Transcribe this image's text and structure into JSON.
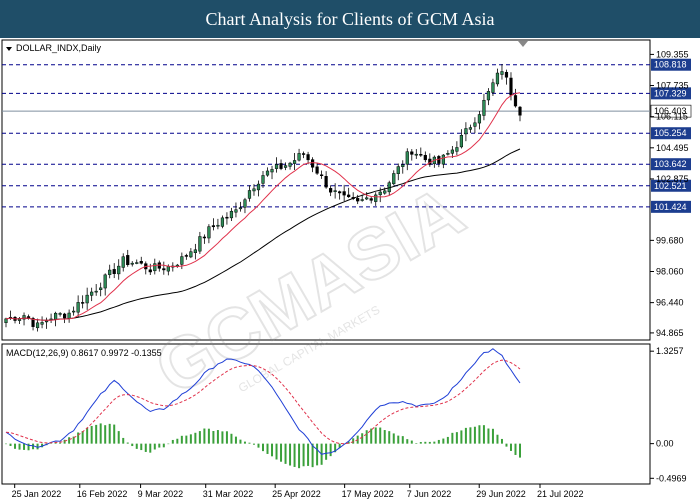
{
  "banner": {
    "title": "Chart Analysis for Clients of GCM Asia"
  },
  "watermark": {
    "text": "GCMASIA",
    "subtext": "GLOBAL CAPITAL MARKETS"
  },
  "colors": {
    "banner_bg": "#1f4e68",
    "bull": "#2e8b57",
    "bear": "#000000",
    "ma_short": "#e0314b",
    "ma_long": "#000000",
    "level_line": "#00008b",
    "macd_line": "#1f3fd6",
    "signal_line": "#e0314b",
    "hist": "#3aa03a",
    "price_tag_bg": "#1c3d8f"
  },
  "chart_data": [
    {
      "type": "candlestick",
      "symbol_label": "DOLLAR_INDX,Daily",
      "ylim": [
        94.6,
        110.0
      ],
      "y_ticks": [
        109.355,
        107.735,
        106.115,
        104.495,
        102.875,
        99.68,
        98.06,
        96.44,
        94.865
      ],
      "levels": [
        108.818,
        107.329,
        105.254,
        103.642,
        102.521,
        101.424
      ],
      "current_price": 106.403,
      "x_labels": [
        "25 Jan 2022",
        "16 Feb 2022",
        "9 Mar 2022",
        "31 Mar 2022",
        "25 Apr 2022",
        "17 May 2022",
        "7 Jun 2022",
        "29 Jun 2022",
        "21 Jul 2022"
      ],
      "anchor_closes": [
        [
          0,
          95.6
        ],
        [
          4,
          95.8
        ],
        [
          7,
          95.2
        ],
        [
          10,
          95.7
        ],
        [
          14,
          95.9
        ],
        [
          17,
          96.6
        ],
        [
          20,
          97.2
        ],
        [
          23,
          97.9
        ],
        [
          26,
          98.6
        ],
        [
          29,
          98.5
        ],
        [
          32,
          98.2
        ],
        [
          36,
          98.3
        ],
        [
          39,
          98.7
        ],
        [
          42,
          99.4
        ],
        [
          45,
          100.2
        ],
        [
          48,
          100.8
        ],
        [
          51,
          101.2
        ],
        [
          54,
          102.3
        ],
        [
          57,
          103.1
        ],
        [
          60,
          103.4
        ],
        [
          63,
          103.7
        ],
        [
          66,
          104.2
        ],
        [
          69,
          103.3
        ],
        [
          72,
          102.3
        ],
        [
          75,
          101.8
        ],
        [
          78,
          101.6
        ],
        [
          81,
          102.0
        ],
        [
          84,
          102.4
        ],
        [
          87,
          103.4
        ],
        [
          90,
          104.4
        ],
        [
          93,
          103.9
        ],
        [
          96,
          103.7
        ],
        [
          99,
          104.4
        ],
        [
          102,
          105.3
        ],
        [
          105,
          106.4
        ],
        [
          108,
          107.8
        ],
        [
          110,
          108.6
        ],
        [
          112,
          107.4
        ],
        [
          114,
          106.4
        ]
      ],
      "candle_count": 115,
      "ma_short_period": 10,
      "ma_long_period": 40
    },
    {
      "type": "macd",
      "label": "MACD(12,26,9) 0.8617 0.9972 -0.1355",
      "ylim": [
        -0.55,
        1.4
      ],
      "y_ticks": [
        1.3257,
        0.0,
        -0.4969
      ],
      "macd_anchors": [
        [
          0,
          0.15
        ],
        [
          3,
          0.05
        ],
        [
          6,
          -0.05
        ],
        [
          9,
          0.0
        ],
        [
          12,
          0.05
        ],
        [
          15,
          0.2
        ],
        [
          18,
          0.45
        ],
        [
          21,
          0.7
        ],
        [
          24,
          0.9
        ],
        [
          26,
          0.8
        ],
        [
          29,
          0.6
        ],
        [
          32,
          0.45
        ],
        [
          35,
          0.5
        ],
        [
          38,
          0.65
        ],
        [
          41,
          0.8
        ],
        [
          44,
          1.0
        ],
        [
          47,
          1.15
        ],
        [
          49,
          1.2
        ],
        [
          52,
          1.18
        ],
        [
          55,
          1.1
        ],
        [
          58,
          0.9
        ],
        [
          61,
          0.6
        ],
        [
          64,
          0.3
        ],
        [
          67,
          0.05
        ],
        [
          70,
          -0.15
        ],
        [
          73,
          -0.1
        ],
        [
          76,
          0.05
        ],
        [
          79,
          0.25
        ],
        [
          82,
          0.5
        ],
        [
          85,
          0.6
        ],
        [
          88,
          0.6
        ],
        [
          91,
          0.55
        ],
        [
          94,
          0.55
        ],
        [
          97,
          0.65
        ],
        [
          100,
          0.85
        ],
        [
          103,
          1.1
        ],
        [
          106,
          1.3
        ],
        [
          108,
          1.35
        ],
        [
          110,
          1.25
        ],
        [
          112,
          1.05
        ],
        [
          114,
          0.86
        ]
      ],
      "signal_period": 9
    }
  ]
}
